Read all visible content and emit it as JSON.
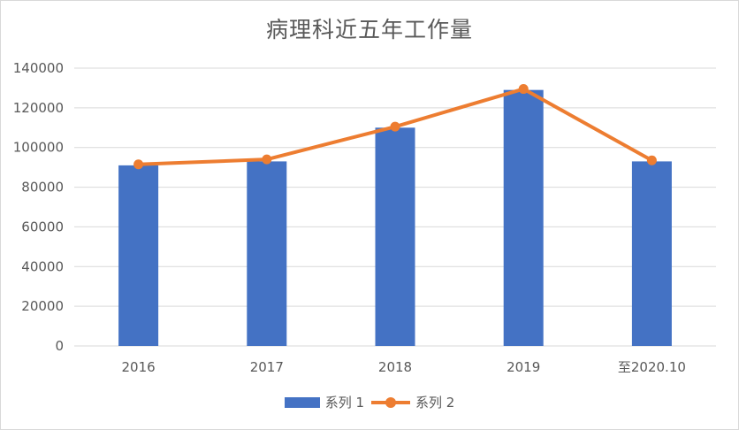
{
  "chart_data": {
    "type": "bar",
    "title": "病理科近五年工作量",
    "categories": [
      "2016",
      "2017",
      "2018",
      "2019",
      "至2020.10"
    ],
    "series": [
      {
        "name": "系列 1",
        "type": "bar",
        "color": "#4472C4",
        "values": [
          91000,
          93000,
          110000,
          129000,
          93000
        ]
      },
      {
        "name": "系列 2",
        "type": "line",
        "color": "#ED7D31",
        "values": [
          91500,
          94000,
          110500,
          129500,
          93500
        ]
      }
    ],
    "ylim": [
      0,
      140000
    ],
    "yticks": [
      "0",
      "20000",
      "40000",
      "60000",
      "80000",
      "100000",
      "120000",
      "140000"
    ],
    "grid": true,
    "legend": "bottom"
  }
}
